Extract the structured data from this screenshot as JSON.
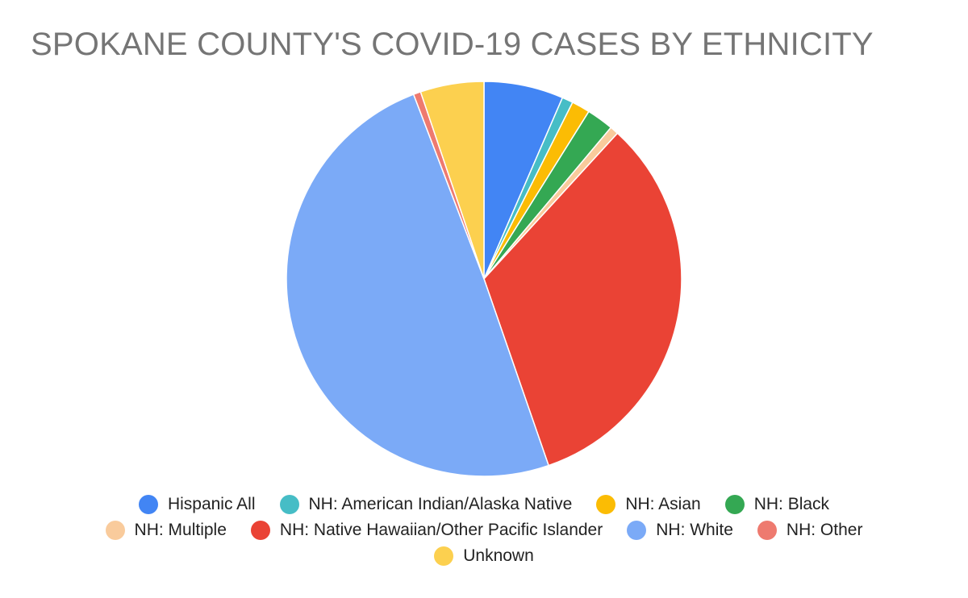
{
  "chart_data": {
    "type": "pie",
    "title": "SPOKANE COUNTY'S COVID-19 CASES BY ETHNICITY",
    "unit": "percent of cases (estimated from slice angles)",
    "slices": [
      {
        "label": "Hispanic All",
        "value": 6.5,
        "color": "#4285F4"
      },
      {
        "label": "NH: American Indian/Alaska Native",
        "value": 0.9,
        "color": "#46BDC6"
      },
      {
        "label": "NH: Asian",
        "value": 1.5,
        "color": "#FBBC04"
      },
      {
        "label": "NH: Black",
        "value": 2.2,
        "color": "#34A853"
      },
      {
        "label": "NH: Multiple",
        "value": 0.7,
        "color": "#F9CB9C"
      },
      {
        "label": "NH: Native Hawaiian/Other Pacific Islander",
        "value": 32.9,
        "color": "#EA4335"
      },
      {
        "label": "NH: White",
        "value": 49.5,
        "color": "#7BAAF7"
      },
      {
        "label": "NH: Other",
        "value": 0.6,
        "color": "#EE7A6F"
      },
      {
        "label": "Unknown",
        "value": 5.2,
        "color": "#FCD04F"
      }
    ],
    "start_angle": "12 o'clock",
    "direction": "clockwise",
    "legend_position": "bottom"
  }
}
